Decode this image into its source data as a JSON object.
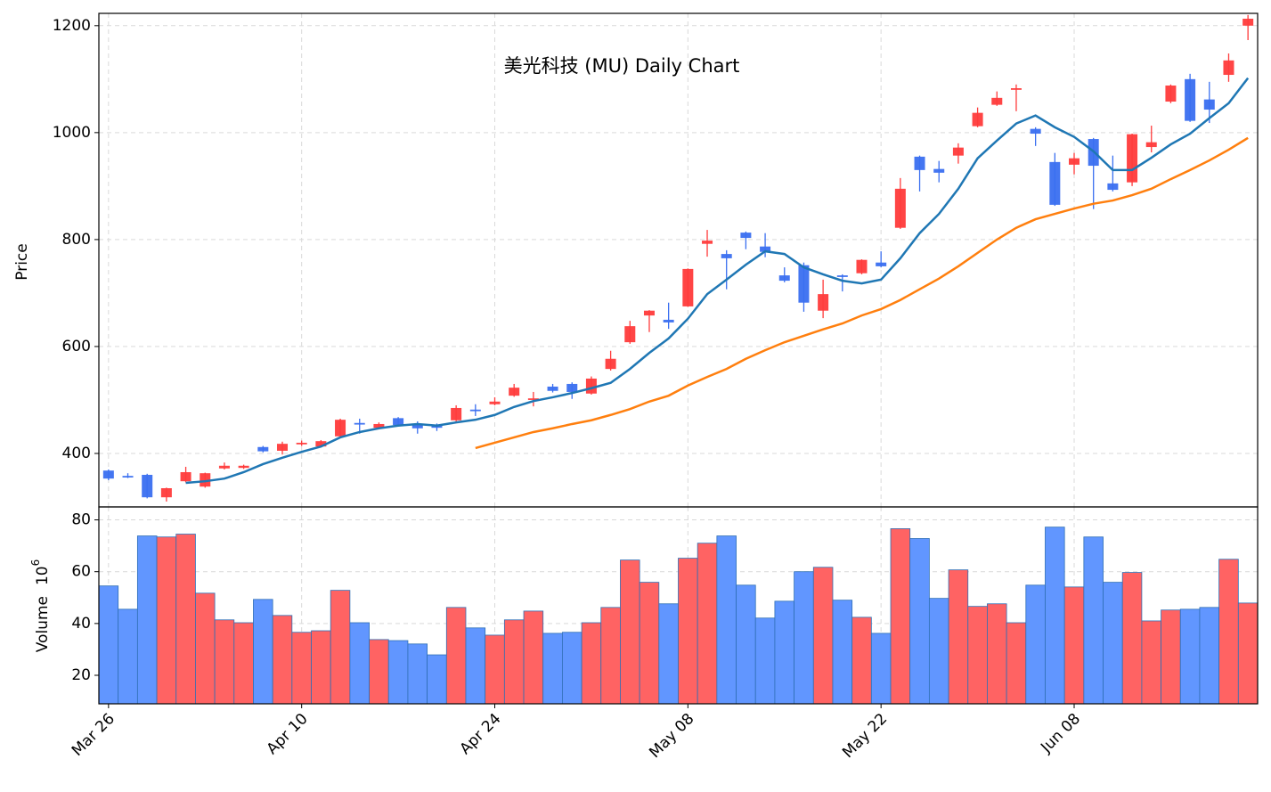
{
  "chart_data": {
    "type": "candlestick",
    "title": "美光科技 (MU) Daily Chart",
    "ylabel": "Price",
    "categories": [
      "Mar 26",
      null,
      null,
      null,
      null,
      null,
      null,
      null,
      null,
      null,
      "Apr 10",
      null,
      null,
      null,
      null,
      null,
      null,
      null,
      null,
      null,
      "Apr 24",
      null,
      null,
      null,
      null,
      null,
      null,
      null,
      null,
      null,
      "May 08",
      null,
      null,
      null,
      null,
      null,
      null,
      null,
      null,
      null,
      "May 22",
      null,
      null,
      null,
      null,
      null,
      null,
      null,
      null,
      null,
      "Jun 08",
      null,
      null,
      null,
      null,
      null,
      null,
      null,
      null,
      null
    ],
    "open": [
      368,
      358,
      360,
      318,
      348,
      338,
      372,
      373,
      412,
      405,
      417,
      413,
      432,
      457,
      448,
      466,
      455,
      453,
      462,
      482,
      492,
      508,
      500,
      525,
      530,
      512,
      558,
      608,
      658,
      650,
      675,
      792,
      773,
      813,
      787,
      733,
      752,
      667,
      733,
      737,
      757,
      822,
      955,
      932,
      957,
      1012,
      1052,
      1080,
      1007,
      945,
      940,
      988,
      905,
      907,
      973,
      1058,
      1100,
      1062,
      1108,
      1200
    ],
    "high": [
      370,
      363,
      362,
      336,
      375,
      364,
      383,
      379,
      414,
      422,
      424,
      425,
      465,
      465,
      458,
      468,
      460,
      456,
      490,
      492,
      505,
      530,
      515,
      530,
      533,
      544,
      592,
      648,
      668,
      682,
      746,
      818,
      780,
      815,
      812,
      748,
      757,
      725,
      735,
      763,
      778,
      915,
      957,
      947,
      980,
      1047,
      1077,
      1090,
      1010,
      962,
      962,
      990,
      957,
      998,
      1013,
      1090,
      1110,
      1095,
      1148,
      1220
    ],
    "low": [
      350,
      354,
      316,
      310,
      346,
      336,
      370,
      371,
      402,
      398,
      414,
      411,
      430,
      437,
      447,
      451,
      437,
      442,
      460,
      470,
      490,
      506,
      488,
      514,
      502,
      510,
      555,
      605,
      627,
      633,
      674,
      768,
      707,
      782,
      767,
      720,
      665,
      653,
      703,
      735,
      748,
      820,
      890,
      907,
      942,
      1010,
      1050,
      1040,
      975,
      863,
      922,
      857,
      890,
      900,
      963,
      1055,
      1020,
      1018,
      1095,
      1173
    ],
    "close": [
      353,
      355,
      318,
      335,
      365,
      363,
      377,
      377,
      404,
      418,
      420,
      423,
      463,
      454,
      455,
      453,
      447,
      448,
      485,
      479,
      497,
      523,
      503,
      517,
      515,
      540,
      577,
      638,
      667,
      645,
      745,
      798,
      765,
      803,
      777,
      723,
      682,
      698,
      730,
      762,
      750,
      895,
      930,
      925,
      972,
      1037,
      1065,
      1083,
      998,
      865,
      952,
      938,
      893,
      997,
      982,
      1088,
      1022,
      1043,
      1135,
      1213
    ],
    "up_color": "#ff3b3b",
    "down_color": "#3a6ff0",
    "ma": [
      {
        "color": "#1f77b4",
        "values": [
          null,
          null,
          null,
          null,
          345,
          348,
          353,
          365,
          380,
          392,
          403,
          413,
          430,
          440,
          447,
          452,
          455,
          452,
          458,
          463,
          472,
          487,
          498,
          505,
          513,
          522,
          532,
          558,
          588,
          615,
          652,
          698,
          725,
          753,
          778,
          773,
          748,
          735,
          723,
          718,
          725,
          765,
          812,
          848,
          895,
          952,
          985,
          1017,
          1032,
          1010,
          992,
          965,
          930,
          930,
          953,
          978,
          998,
          1027,
          1055,
          1102
        ]
      },
      {
        "color": "#ff7f0e",
        "values": [
          null,
          null,
          null,
          null,
          null,
          null,
          null,
          null,
          null,
          null,
          null,
          null,
          null,
          null,
          null,
          null,
          null,
          null,
          null,
          410,
          420,
          430,
          440,
          447,
          455,
          462,
          472,
          483,
          497,
          508,
          527,
          543,
          558,
          577,
          593,
          608,
          620,
          632,
          643,
          658,
          670,
          687,
          707,
          727,
          750,
          775,
          800,
          822,
          838,
          848,
          858,
          867,
          873,
          883,
          895,
          913,
          930,
          948,
          968,
          990
        ]
      }
    ],
    "ylim": [
      300,
      1223
    ],
    "yticks": [
      400,
      600,
      800,
      1000,
      1200
    ],
    "grid": true,
    "volume": {
      "ylabel": "Volume",
      "scale_base": "10",
      "scale_exponent": "6",
      "up_color": "#ff6363",
      "down_color": "#6196ff",
      "edge_color": "#2f6fb5",
      "values": [
        54.5,
        45.5,
        73.8,
        73.4,
        74.5,
        51.7,
        41.4,
        40.3,
        49.3,
        43.1,
        36.6,
        37.2,
        52.8,
        40.3,
        33.8,
        33.4,
        32.1,
        27.9,
        46.2,
        38.3,
        35.5,
        41.4,
        44.8,
        36.2,
        36.6,
        40.3,
        46.2,
        64.5,
        55.9,
        47.6,
        65.2,
        71.0,
        73.8,
        54.8,
        42.1,
        48.6,
        60.0,
        61.7,
        49.0,
        42.4,
        36.2,
        76.6,
        72.8,
        49.7,
        60.7,
        46.6,
        47.6,
        40.3,
        54.8,
        77.2,
        54.1,
        73.4,
        55.9,
        59.7,
        41.0,
        45.2,
        45.5,
        46.2,
        64.8,
        47.9
      ],
      "ylim": [
        9,
        85
      ],
      "yticks": [
        20,
        40,
        60,
        80
      ]
    }
  }
}
